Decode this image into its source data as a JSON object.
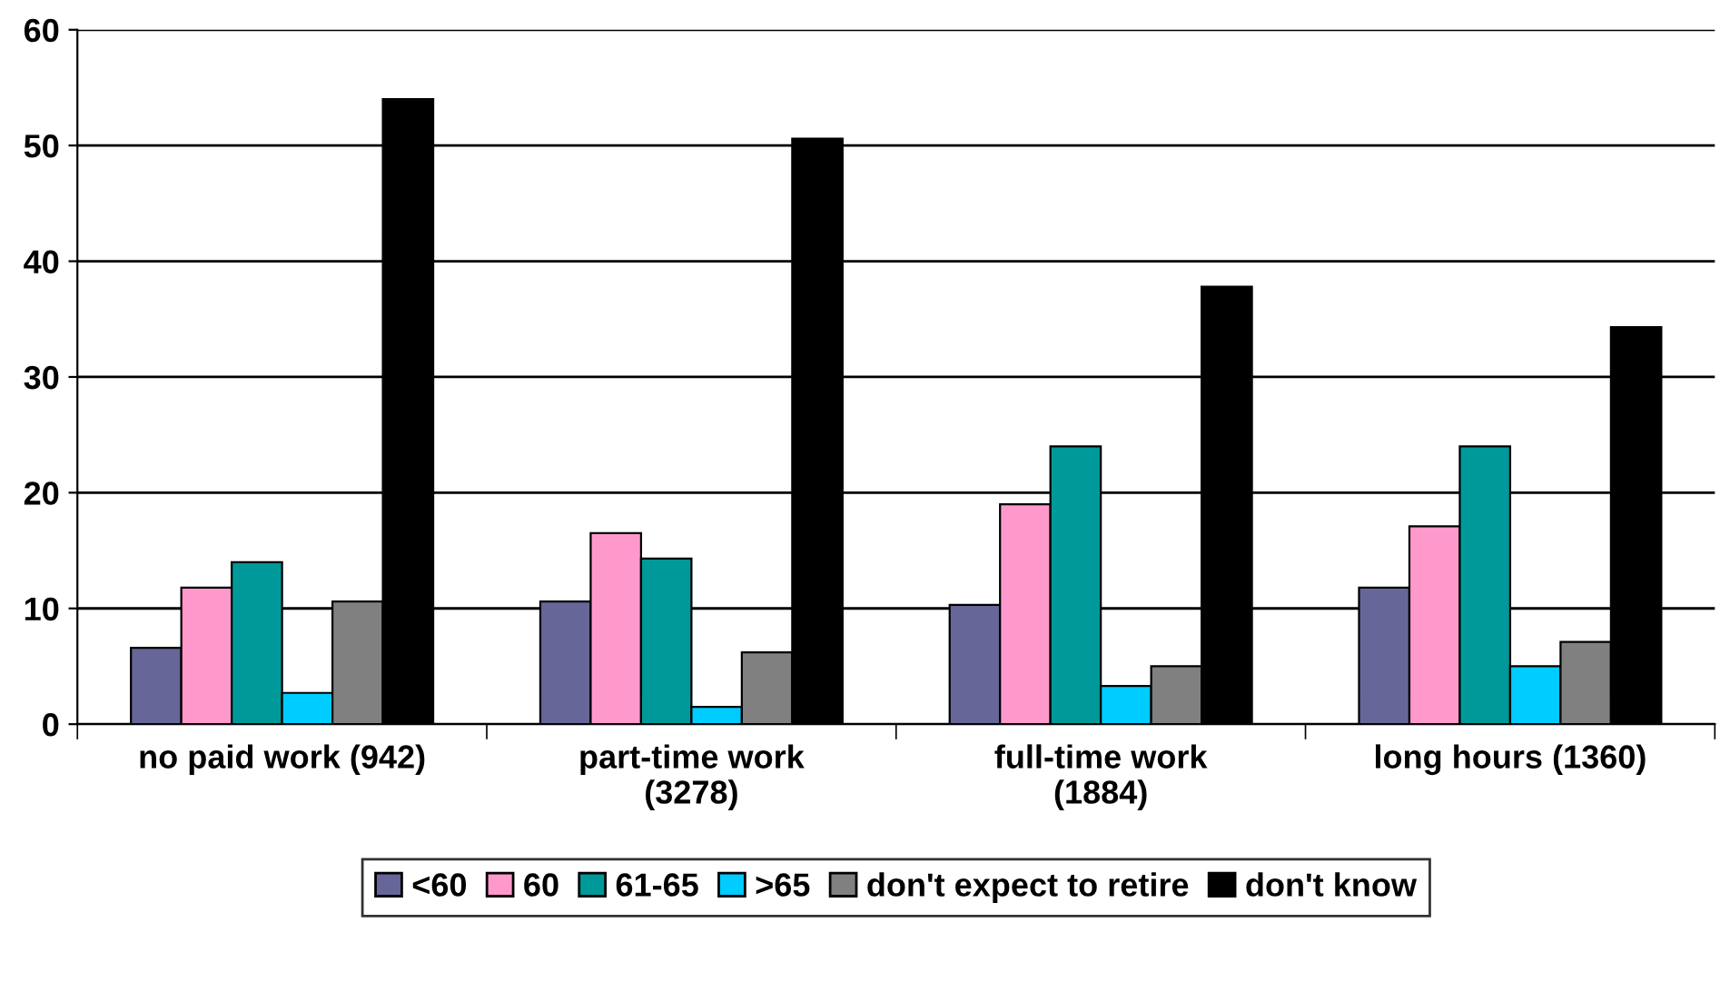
{
  "chart_data": {
    "type": "bar",
    "categories": [
      "no paid work (942)",
      "part-time work\n(3278)",
      "full-time work\n(1884)",
      "long hours (1360)"
    ],
    "series": [
      {
        "name": "<60",
        "color": "#666699",
        "values": [
          6.6,
          10.6,
          10.3,
          11.8
        ]
      },
      {
        "name": "60",
        "color": "#ff99cc",
        "values": [
          11.8,
          16.5,
          19.0,
          17.1
        ]
      },
      {
        "name": "61-65",
        "color": "#009999",
        "values": [
          14.0,
          14.3,
          24.0,
          24.0
        ]
      },
      {
        "name": ">65",
        "color": "#00ccff",
        "values": [
          2.7,
          1.5,
          3.3,
          5.0
        ]
      },
      {
        "name": "don't expect to retire",
        "color": "#808080",
        "values": [
          10.6,
          6.2,
          5.0,
          7.1
        ]
      },
      {
        "name": "don't know",
        "color": "#000000",
        "values": [
          54.0,
          50.6,
          37.8,
          34.3
        ]
      }
    ],
    "ylim": [
      0,
      60
    ],
    "yticks": [
      0,
      10,
      20,
      30,
      40,
      50,
      60
    ],
    "grid": "y",
    "legend": "bottom"
  }
}
